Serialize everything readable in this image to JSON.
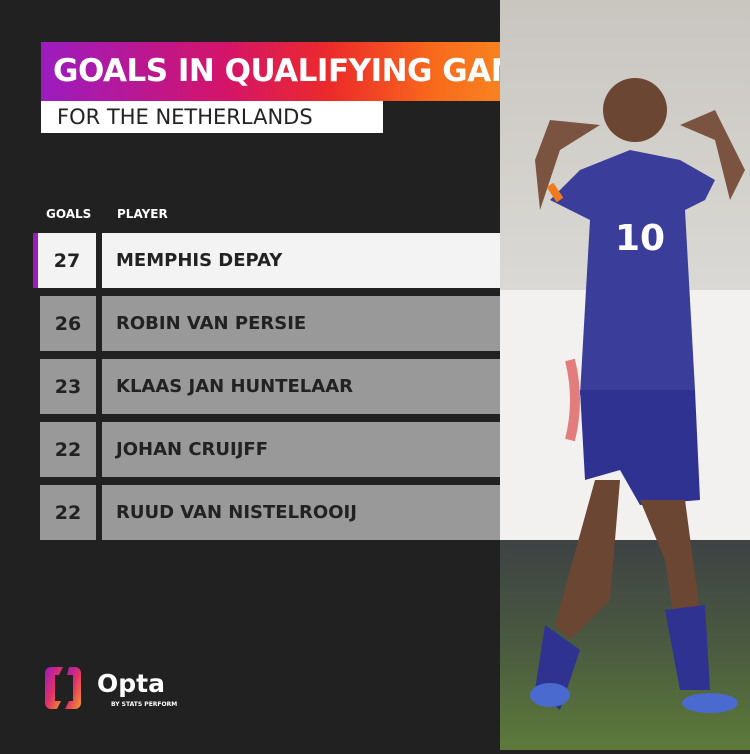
{
  "title": "GOALS IN QUALIFYING GAMES",
  "subtitle": "FOR THE NETHERLANDS",
  "columns": {
    "goals": "GOALS",
    "player": "PLAYER"
  },
  "rows": [
    {
      "goals": "27",
      "player": "MEMPHIS DEPAY"
    },
    {
      "goals": "26",
      "player": "ROBIN VAN PERSIE"
    },
    {
      "goals": "23",
      "player": "KLAAS JAN HUNTELAAR"
    },
    {
      "goals": "22",
      "player": "JOHAN CRUIJFF"
    },
    {
      "goals": "22",
      "player": "RUUD VAN NISTELROOIJ"
    }
  ],
  "photo": {
    "shirt_number": "10"
  },
  "brand": {
    "name": "Opta",
    "tagline": "BY STATS PERFORM"
  },
  "colors": {
    "accent_purple": "#9b1cc0",
    "accent_orange": "#f79b22",
    "background": "#222122"
  }
}
